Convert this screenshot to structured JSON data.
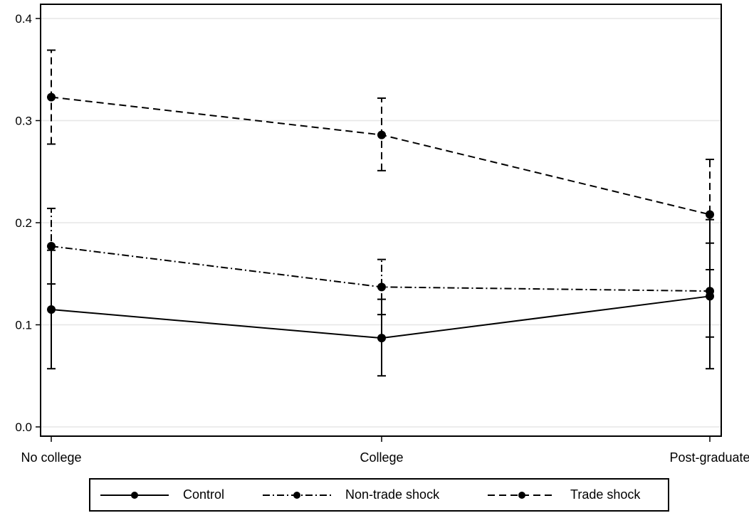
{
  "chart_data": {
    "type": "line",
    "categories": [
      "No college",
      "College",
      "Post-graduate"
    ],
    "ylim": [
      0,
      0.4
    ],
    "yticks": [
      "0.0",
      "0.1",
      "0.2",
      "0.3",
      "0.4"
    ],
    "grid": true,
    "legend_position": "bottom",
    "series": [
      {
        "name": "Control",
        "style": "solid",
        "values": [
          0.115,
          0.087,
          0.128
        ],
        "ci_low": [
          0.057,
          0.05,
          0.057
        ],
        "ci_high": [
          0.173,
          0.125,
          0.203
        ]
      },
      {
        "name": "Non-trade shock",
        "style": "dashdot",
        "values": [
          0.177,
          0.137,
          0.133
        ],
        "ci_low": [
          0.14,
          0.11,
          0.088
        ],
        "ci_high": [
          0.214,
          0.164,
          0.18
        ]
      },
      {
        "name": "Trade shock",
        "style": "dashed",
        "values": [
          0.323,
          0.286,
          0.208
        ],
        "ci_low": [
          0.277,
          0.251,
          0.154
        ],
        "ci_high": [
          0.369,
          0.322,
          0.262
        ]
      }
    ]
  },
  "colors": {
    "line": "#000000",
    "grid": "#e6e6e6",
    "background": "#ffffff"
  }
}
